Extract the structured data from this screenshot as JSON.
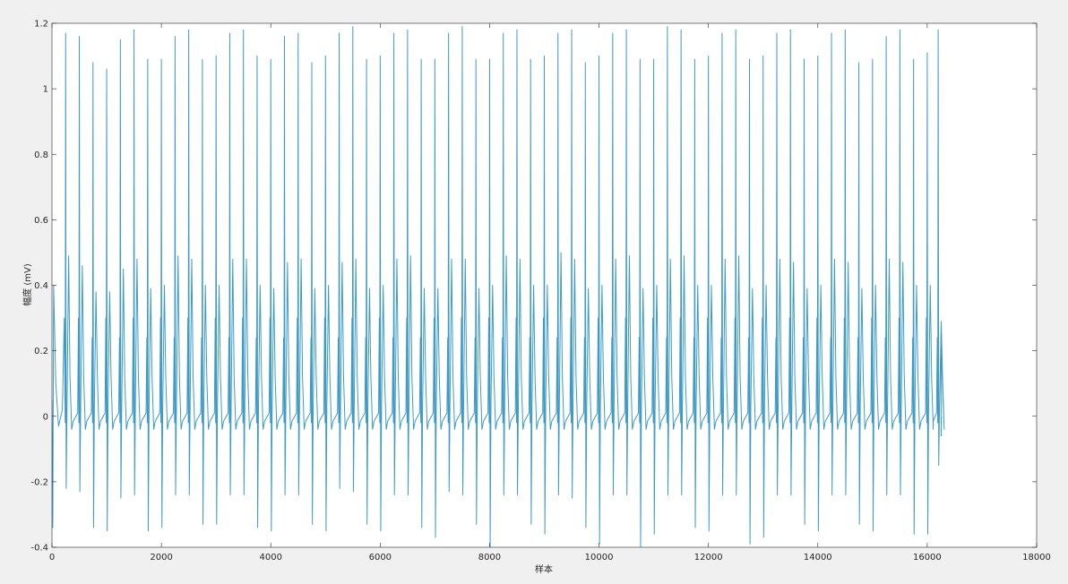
{
  "chart_data": {
    "type": "line",
    "title": "",
    "xlabel": "样本",
    "ylabel": "幅度 (mV)",
    "xlim": [
      0,
      18000
    ],
    "ylim": [
      -0.4,
      1.2
    ],
    "xticks": [
      0,
      2000,
      4000,
      6000,
      8000,
      10000,
      12000,
      14000,
      16000,
      18000
    ],
    "xtick_labels": [
      "0",
      "2000",
      "4000",
      "6000",
      "8000",
      "10000",
      "12000",
      "14000",
      "16000",
      "18000"
    ],
    "yticks": [
      -0.4,
      -0.2,
      0,
      0.2,
      0.4,
      0.6,
      0.8,
      1,
      1.2
    ],
    "ytick_labels": [
      "-0.4",
      "-0.2",
      "0",
      "0.2",
      "0.4",
      "0.6",
      "0.8",
      "1",
      "1.2"
    ],
    "grid": false,
    "legend": "none",
    "series_color": "#3f9bc6",
    "series": [
      {
        "x_range": [
          0,
          16250
        ],
        "beats": [
          {
            "x": 250,
            "r": 1.17,
            "s": -0.22,
            "t": 0.49
          },
          {
            "x": 500,
            "r": 1.16,
            "s": -0.23,
            "t": 0.46
          },
          {
            "x": 750,
            "r": 1.08,
            "s": -0.34,
            "t": 0.38
          },
          {
            "x": 1000,
            "r": 1.06,
            "s": -0.35,
            "t": 0.38
          },
          {
            "x": 1250,
            "r": 1.15,
            "s": -0.25,
            "t": 0.45
          },
          {
            "x": 1500,
            "r": 1.18,
            "s": -0.24,
            "t": 0.48
          },
          {
            "x": 1750,
            "r": 1.09,
            "s": -0.35,
            "t": 0.39
          },
          {
            "x": 2000,
            "r": 1.09,
            "s": -0.34,
            "t": 0.4
          },
          {
            "x": 2250,
            "r": 1.16,
            "s": -0.24,
            "t": 0.49
          },
          {
            "x": 2500,
            "r": 1.18,
            "s": -0.24,
            "t": 0.48
          },
          {
            "x": 2750,
            "r": 1.09,
            "s": -0.33,
            "t": 0.4
          },
          {
            "x": 3000,
            "r": 1.1,
            "s": -0.33,
            "t": 0.4
          },
          {
            "x": 3250,
            "r": 1.17,
            "s": -0.24,
            "t": 0.48
          },
          {
            "x": 3500,
            "r": 1.18,
            "s": -0.24,
            "t": 0.48
          },
          {
            "x": 3750,
            "r": 1.1,
            "s": -0.34,
            "t": 0.4
          },
          {
            "x": 4000,
            "r": 1.09,
            "s": -0.35,
            "t": 0.39
          },
          {
            "x": 4250,
            "r": 1.16,
            "s": -0.24,
            "t": 0.47
          },
          {
            "x": 4500,
            "r": 1.17,
            "s": -0.24,
            "t": 0.48
          },
          {
            "x": 4750,
            "r": 1.08,
            "s": -0.33,
            "t": 0.39
          },
          {
            "x": 5000,
            "r": 1.1,
            "s": -0.35,
            "t": 0.4
          },
          {
            "x": 5250,
            "r": 1.17,
            "s": -0.22,
            "t": 0.47
          },
          {
            "x": 5500,
            "r": 1.19,
            "s": -0.23,
            "t": 0.48
          },
          {
            "x": 5750,
            "r": 1.09,
            "s": -0.33,
            "t": 0.39
          },
          {
            "x": 6000,
            "r": 1.1,
            "s": -0.35,
            "t": 0.4
          },
          {
            "x": 6250,
            "r": 1.17,
            "s": -0.24,
            "t": 0.48
          },
          {
            "x": 6500,
            "r": 1.18,
            "s": -0.24,
            "t": 0.49
          },
          {
            "x": 6750,
            "r": 1.09,
            "s": -0.34,
            "t": 0.39
          },
          {
            "x": 7000,
            "r": 1.09,
            "s": -0.37,
            "t": 0.39
          },
          {
            "x": 7250,
            "r": 1.17,
            "s": -0.23,
            "t": 0.48
          },
          {
            "x": 7500,
            "r": 1.19,
            "s": -0.24,
            "t": 0.48
          },
          {
            "x": 7750,
            "r": 1.09,
            "s": -0.33,
            "t": 0.39
          },
          {
            "x": 8000,
            "r": 1.09,
            "s": -0.4,
            "t": 0.4
          },
          {
            "x": 8250,
            "r": 1.17,
            "s": -0.24,
            "t": 0.49
          },
          {
            "x": 8500,
            "r": 1.18,
            "s": -0.24,
            "t": 0.48
          },
          {
            "x": 8750,
            "r": 1.09,
            "s": -0.33,
            "t": 0.4
          },
          {
            "x": 9000,
            "r": 1.1,
            "s": -0.36,
            "t": 0.4
          },
          {
            "x": 9250,
            "r": 1.17,
            "s": -0.24,
            "t": 0.5
          },
          {
            "x": 9500,
            "r": 1.18,
            "s": -0.25,
            "t": 0.48
          },
          {
            "x": 9750,
            "r": 1.08,
            "s": -0.34,
            "t": 0.39
          },
          {
            "x": 10000,
            "r": 1.1,
            "s": -0.39,
            "t": 0.4
          },
          {
            "x": 10250,
            "r": 1.17,
            "s": -0.24,
            "t": 0.48
          },
          {
            "x": 10500,
            "r": 1.18,
            "s": -0.24,
            "t": 0.49
          },
          {
            "x": 10750,
            "r": 1.09,
            "s": -0.4,
            "t": 0.39
          },
          {
            "x": 11000,
            "r": 1.09,
            "s": -0.36,
            "t": 0.4
          },
          {
            "x": 11250,
            "r": 1.19,
            "s": -0.24,
            "t": 0.48
          },
          {
            "x": 11500,
            "r": 1.18,
            "s": -0.24,
            "t": 0.49
          },
          {
            "x": 11750,
            "r": 1.09,
            "s": -0.34,
            "t": 0.4
          },
          {
            "x": 12000,
            "r": 1.1,
            "s": -0.35,
            "t": 0.4
          },
          {
            "x": 12250,
            "r": 1.17,
            "s": -0.24,
            "t": 0.48
          },
          {
            "x": 12500,
            "r": 1.18,
            "s": -0.24,
            "t": 0.49
          },
          {
            "x": 12750,
            "r": 1.09,
            "s": -0.39,
            "t": 0.39
          },
          {
            "x": 13000,
            "r": 1.1,
            "s": -0.37,
            "t": 0.4
          },
          {
            "x": 13250,
            "r": 1.17,
            "s": -0.24,
            "t": 0.48
          },
          {
            "x": 13500,
            "r": 1.18,
            "s": -0.24,
            "t": 0.47
          },
          {
            "x": 13750,
            "r": 1.09,
            "s": -0.33,
            "t": 0.39
          },
          {
            "x": 14000,
            "r": 1.1,
            "s": -0.35,
            "t": 0.4
          },
          {
            "x": 14250,
            "r": 1.17,
            "s": -0.24,
            "t": 0.48
          },
          {
            "x": 14500,
            "r": 1.18,
            "s": -0.24,
            "t": 0.47
          },
          {
            "x": 14750,
            "r": 1.08,
            "s": -0.33,
            "t": 0.39
          },
          {
            "x": 15000,
            "r": 1.09,
            "s": -0.35,
            "t": 0.4
          },
          {
            "x": 15250,
            "r": 1.16,
            "s": -0.24,
            "t": 0.48
          },
          {
            "x": 15500,
            "r": 1.18,
            "s": -0.24,
            "t": 0.47
          },
          {
            "x": 15750,
            "r": 1.09,
            "s": -0.36,
            "t": 0.4
          },
          {
            "x": 16000,
            "r": 1.11,
            "s": -0.36,
            "t": 0.4
          },
          {
            "x": 16200,
            "r": 1.18,
            "s": -0.15,
            "t": 0.29
          }
        ]
      }
    ]
  }
}
